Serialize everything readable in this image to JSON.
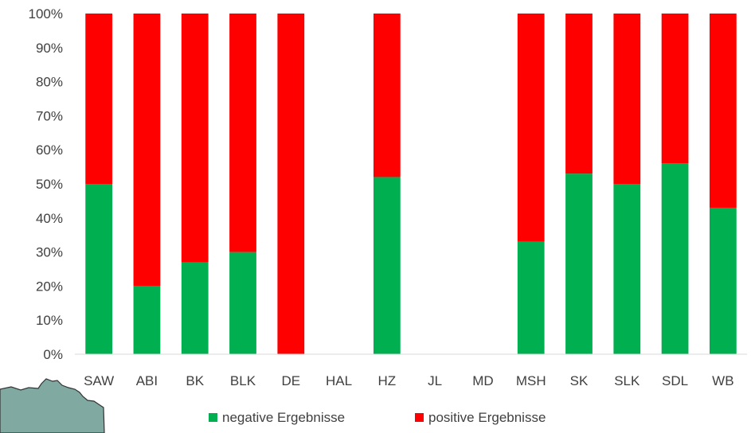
{
  "chart_data": {
    "type": "bar",
    "stacked": true,
    "normalized_percent": true,
    "categories": [
      "SAW",
      "ABI",
      "BK",
      "BLK",
      "DE",
      "HAL",
      "HZ",
      "JL",
      "MD",
      "MSH",
      "SK",
      "SLK",
      "SDL",
      "WB"
    ],
    "series": [
      {
        "name": "negative Ergebnisse",
        "color": "#00b050",
        "values": [
          50,
          20,
          27,
          30,
          0,
          0,
          52,
          0,
          0,
          33,
          53,
          50,
          56,
          43
        ]
      },
      {
        "name": "positive Ergebnisse",
        "color": "#ff0000",
        "values": [
          50,
          80,
          73,
          70,
          100,
          0,
          48,
          0,
          0,
          67,
          47,
          50,
          44,
          57
        ]
      }
    ],
    "y_ticks": [
      "0%",
      "10%",
      "20%",
      "30%",
      "40%",
      "50%",
      "60%",
      "70%",
      "80%",
      "90%",
      "100%"
    ],
    "ylim": [
      0,
      100
    ],
    "grid": false,
    "legend_position": "bottom"
  }
}
